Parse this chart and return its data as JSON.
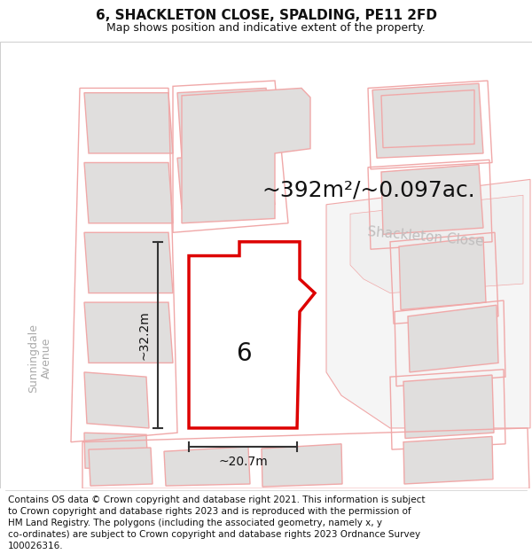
{
  "title": "6, SHACKLETON CLOSE, SPALDING, PE11 2FD",
  "subtitle": "Map shows position and indicative extent of the property.",
  "footer": "Contains OS data © Crown copyright and database right 2021. This information is subject\nto Crown copyright and database rights 2023 and is reproduced with the permission of\nHM Land Registry. The polygons (including the associated geometry, namely x, y\nco-ordinates) are subject to Crown copyright and database rights 2023 Ordnance Survey\n100026316.",
  "area_label": "~392m²/~0.097ac.",
  "width_label": "~20.7m",
  "height_label": "~32.2m",
  "plot_number": "6",
  "bg_color": "#f2f0ee",
  "plot_fill": "#ffffff",
  "plot_border_color": "#dd0000",
  "dim_line_color": "#333333",
  "road_label_color": "#c0bebe",
  "street_label_color": "#aaaaaa",
  "faint_outline_color": "#f0a8a8",
  "building_fill": "#e0dedd",
  "building_inside_fill": "#d8d6d4",
  "title_fontsize": 11,
  "subtitle_fontsize": 9,
  "footer_fontsize": 7.5,
  "area_fontsize": 18,
  "dim_fontsize": 10,
  "plot_num_fontsize": 20,
  "road_label_fontsize": 11,
  "street_label_fontsize": 9
}
